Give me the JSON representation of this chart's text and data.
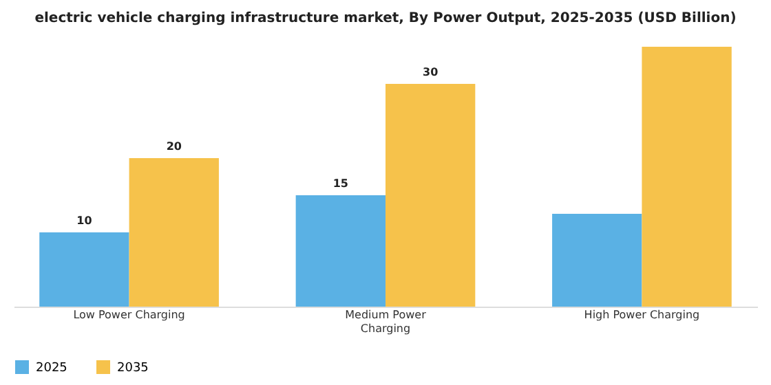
{
  "chart_data": {
    "type": "bar",
    "title": "electric vehicle charging infrastructure market, By Power Output, 2025-2035 (USD Billion)",
    "categories": [
      "Low Power Charging",
      "Medium Power Charging",
      "High Power Charging"
    ],
    "series": [
      {
        "name": "2025",
        "color": "#5ab1e4",
        "values": [
          10,
          15,
          12.5
        ],
        "value_labels": [
          "10",
          "15",
          null
        ]
      },
      {
        "name": "2035",
        "color": "#f6c24b",
        "values": [
          20,
          30,
          35
        ],
        "value_labels": [
          "20",
          "30",
          null
        ]
      }
    ],
    "legend": "bottom",
    "grid": false,
    "tick_labels": "x"
  }
}
